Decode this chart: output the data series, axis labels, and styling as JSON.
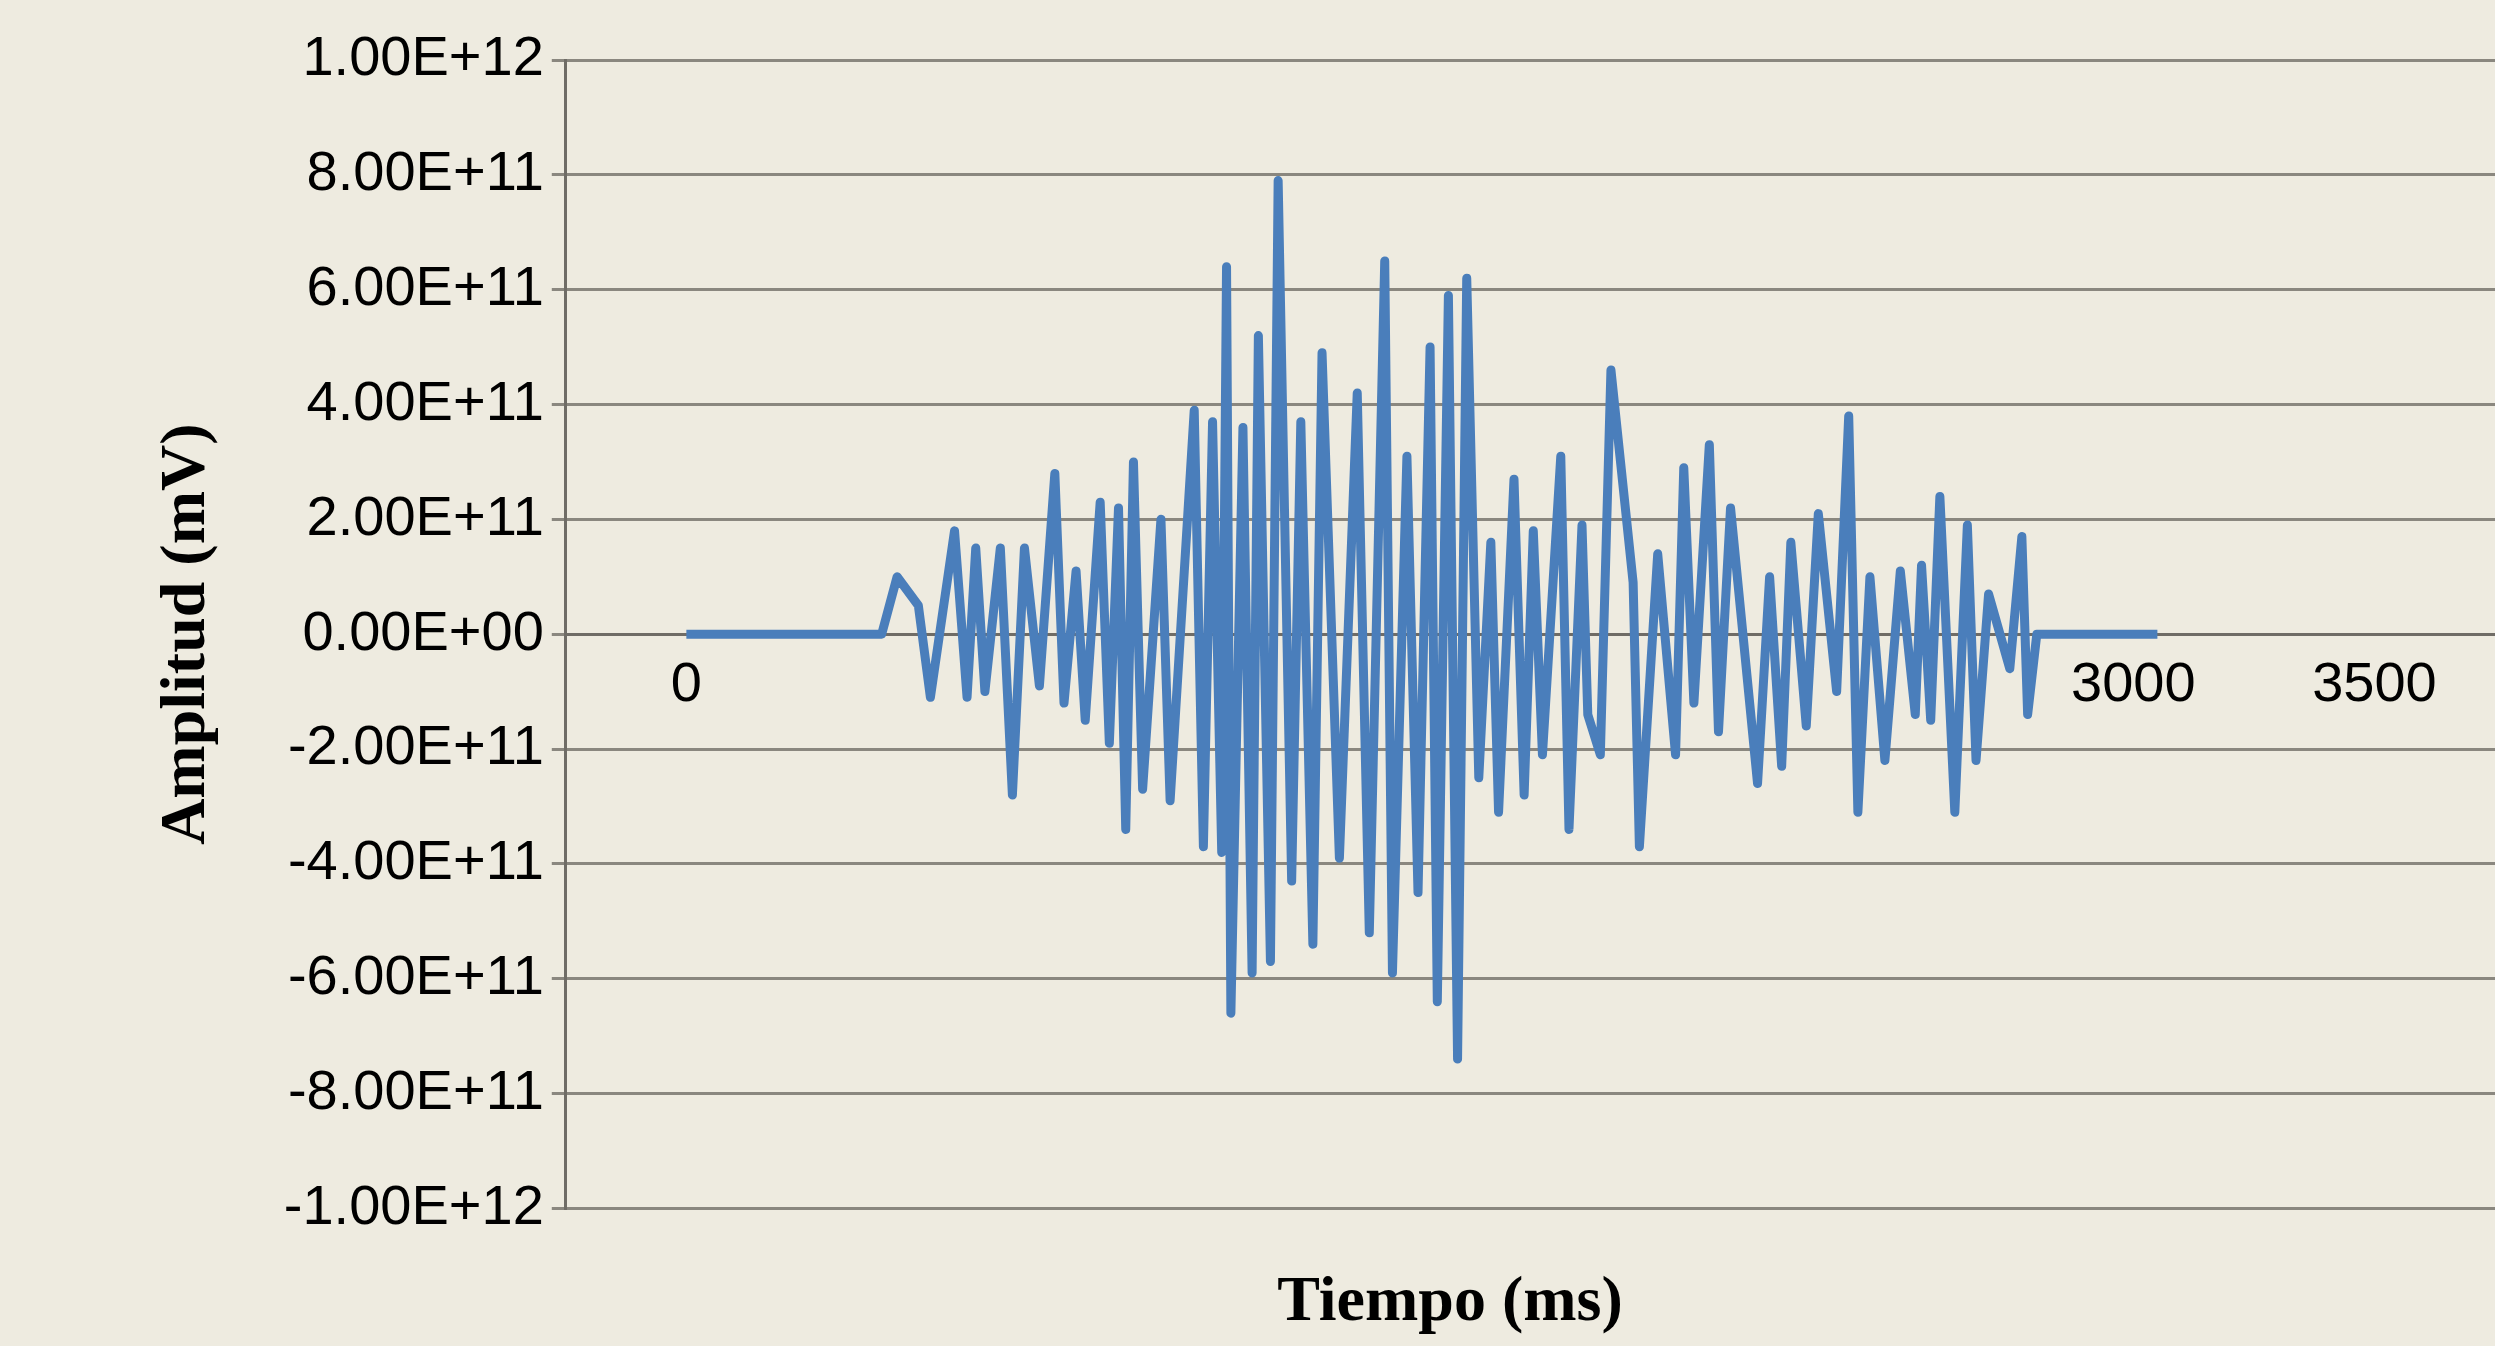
{
  "chart_data": {
    "type": "line",
    "xlabel": "Tiempo (ms)",
    "ylabel": "Amplitud (mV)",
    "color": "#4a7ebb",
    "marker": "none",
    "grid": "y",
    "x": [
      0,
      100,
      200,
      300,
      405,
      437,
      481,
      506,
      556,
      582,
      600,
      619,
      651,
      676,
      701,
      732,
      764,
      783,
      808,
      827,
      858,
      877,
      896,
      911,
      927,
      946,
      984,
      1003,
      1053,
      1072,
      1091,
      1110,
      1120,
      1129,
      1154,
      1173,
      1186,
      1211,
      1227,
      1255,
      1274,
      1299,
      1318,
      1354,
      1391,
      1416,
      1448,
      1464,
      1494,
      1517,
      1542,
      1557,
      1580,
      1599,
      1618,
      1643,
      1668,
      1684,
      1716,
      1737,
      1756,
      1775,
      1813,
      1830,
      1857,
      1869,
      1895,
      1917,
      1963,
      1976,
      2014,
      2051,
      2068,
      2089,
      2121,
      2140,
      2165,
      2221,
      2246,
      2271,
      2290,
      2322,
      2347,
      2385,
      2410,
      2429,
      2454,
      2485,
      2517,
      2548,
      2561,
      2580,
      2599,
      2630,
      2656,
      2674,
      2700,
      2744,
      2769,
      2781,
      2800,
      2900,
      3050
    ],
    "values": [
      0,
      0,
      0,
      0,
      0,
      100000000000.0,
      50000000000.0,
      -110000000000.0,
      180000000000.0,
      -110000000000.0,
      150000000000.0,
      -100000000000.0,
      150000000000.0,
      -280000000000.0,
      150000000000.0,
      -90000000000.0,
      280000000000.0,
      -120000000000.0,
      110000000000.0,
      -150000000000.0,
      230000000000.0,
      -190000000000.0,
      220000000000.0,
      -340000000000.0,
      300000000000.0,
      -270000000000.0,
      200000000000.0,
      -290000000000.0,
      390000000000.0,
      -370000000000.0,
      370000000000.0,
      -380000000000.0,
      640000000000.0,
      -660000000000.0,
      360000000000.0,
      -590000000000.0,
      520000000000.0,
      -570000000000.0,
      790000000000.0,
      -430000000000.0,
      370000000000.0,
      -540000000000.0,
      490000000000.0,
      -390000000000.0,
      420000000000.0,
      -520000000000.0,
      650000000000.0,
      -590000000000.0,
      310000000000.0,
      -450000000000.0,
      500000000000.0,
      -640000000000.0,
      590000000000.0,
      -740000000000.0,
      620000000000.0,
      -250000000000.0,
      160000000000.0,
      -310000000000.0,
      270000000000.0,
      -280000000000.0,
      180000000000.0,
      -210000000000.0,
      310000000000.0,
      -340000000000.0,
      190000000000.0,
      -140000000000.0,
      -210000000000.0,
      460000000000.0,
      90000000000.0,
      -370000000000.0,
      140000000000.0,
      -210000000000.0,
      290000000000.0,
      -120000000000.0,
      330000000000.0,
      -170000000000.0,
      220000000000.0,
      -260000000000.0,
      100000000000.0,
      -230000000000.0,
      160000000000.0,
      -160000000000.0,
      210000000000.0,
      -100000000000.0,
      380000000000.0,
      -310000000000.0,
      100000000000.0,
      -220000000000.0,
      110000000000.0,
      -140000000000.0,
      120000000000.0,
      -150000000000.0,
      240000000000.0,
      -310000000000.0,
      190000000000.0,
      -220000000000.0,
      70000000000.0,
      -60000000000.0,
      170000000000.0,
      -140000000000.0,
      0,
      0,
      0
    ],
    "xlim": [
      -250,
      3750
    ],
    "xticks": [
      0,
      3000,
      3500
    ],
    "ylim": [
      -1000000000000.0,
      1000000000000.0
    ],
    "yticks": [
      {
        "value": 1000000000000.0,
        "label": "1.00E+12"
      },
      {
        "value": 800000000000.0,
        "label": "8.00E+11"
      },
      {
        "value": 600000000000.0,
        "label": "6.00E+11"
      },
      {
        "value": 400000000000.0,
        "label": "4.00E+11"
      },
      {
        "value": 200000000000.0,
        "label": "2.00E+11"
      },
      {
        "value": 0,
        "label": "0.00E+00"
      },
      {
        "value": -200000000000.0,
        "label": "-2.00E+11"
      },
      {
        "value": -400000000000.0,
        "label": "-4.00E+11"
      },
      {
        "value": -600000000000.0,
        "label": "-6.00E+11"
      },
      {
        "value": -800000000000.0,
        "label": "-8.00E+11"
      },
      {
        "value": -1000000000000.0,
        "label": "-1.00E+12"
      }
    ]
  }
}
